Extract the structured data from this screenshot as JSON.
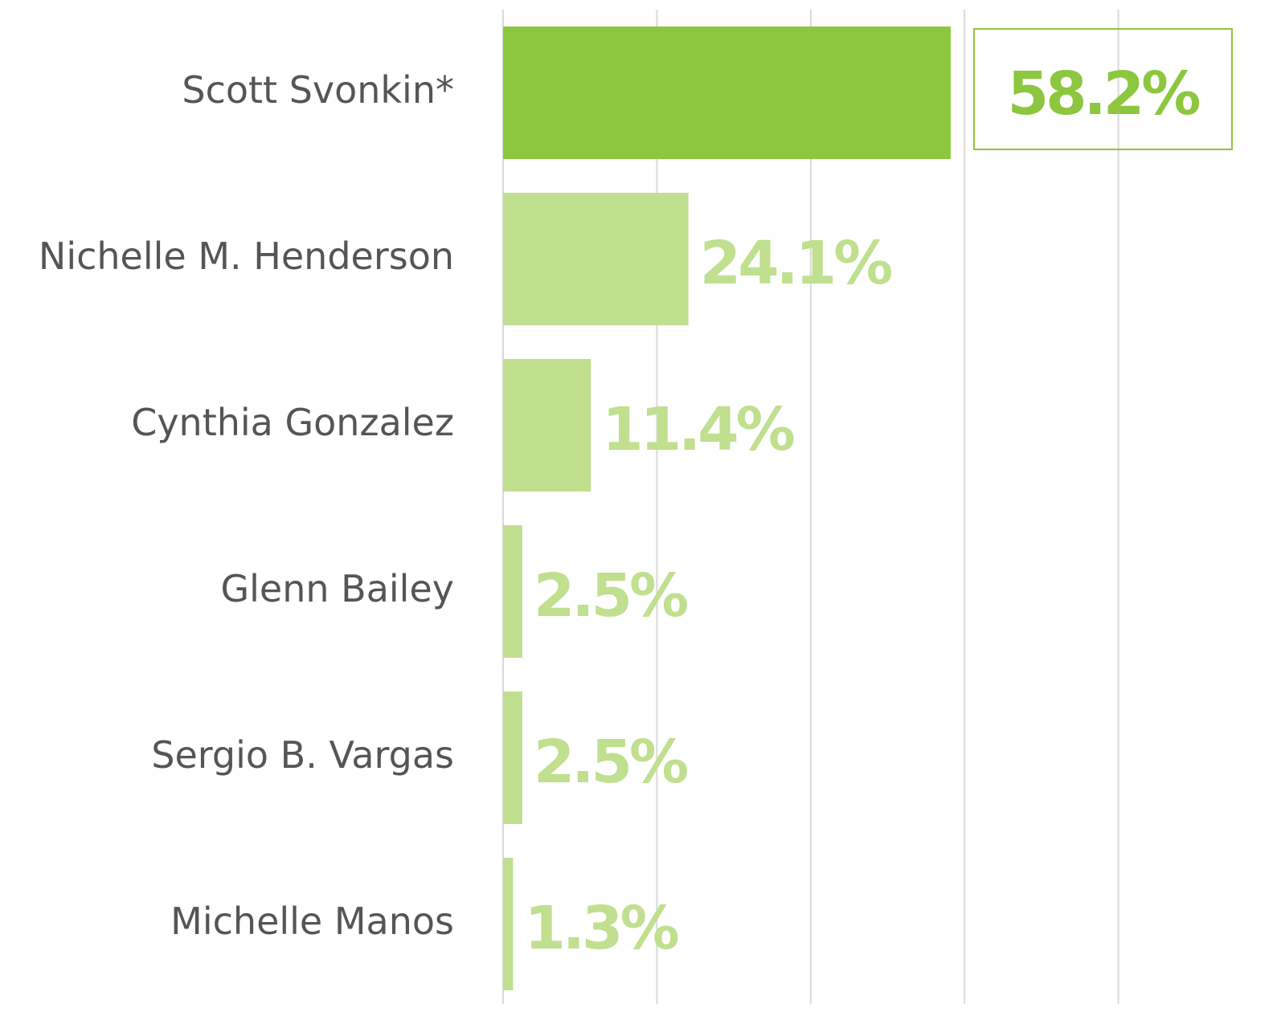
{
  "chart_data": {
    "type": "hbar",
    "categories": [
      "Scott Svonkin*",
      "Nichelle M. Henderson",
      "Cynthia Gonzalez",
      "Glenn Bailey",
      "Sergio B. Vargas",
      "Michelle Manos"
    ],
    "values": [
      58.2,
      24.1,
      11.4,
      2.5,
      2.5,
      1.3
    ],
    "value_labels": [
      "58.2%",
      "24.1%",
      "11.4%",
      "2.5%",
      "2.5%",
      "1.3%"
    ],
    "colors": [
      "#8dc63f",
      "#c0df8f",
      "#c0df8f",
      "#c0df8f",
      "#c0df8f",
      "#c0df8f"
    ],
    "xlim": [
      0,
      100
    ],
    "xticks": [
      0,
      20,
      40,
      60,
      80
    ],
    "grid": true
  }
}
